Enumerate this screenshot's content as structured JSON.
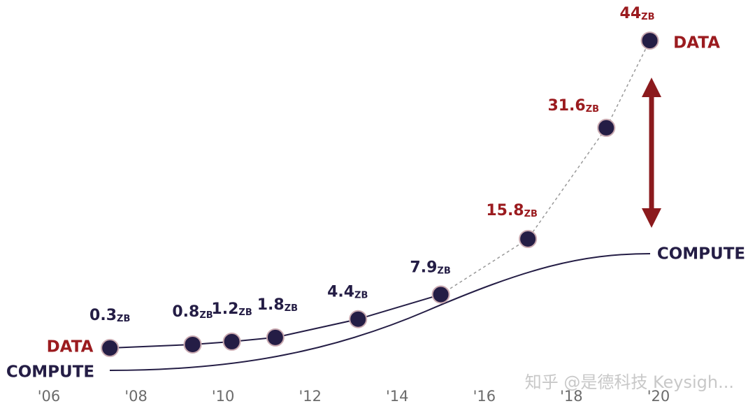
{
  "chart_data": {
    "type": "line",
    "unit": "ZB",
    "x": [
      2007.4,
      2009.3,
      2010.2,
      2011.2,
      2013.1,
      2015.0,
      2017.0,
      2018.8,
      2019.8
    ],
    "series": [
      {
        "name": "DATA",
        "color": "#9b1b1f",
        "point_color": "#241d45",
        "values": [
          0.3,
          0.8,
          1.2,
          1.8,
          4.4,
          7.9,
          15.8,
          31.6,
          44
        ],
        "label_colors": [
          "#241d45",
          "#241d45",
          "#241d45",
          "#241d45",
          "#241d45",
          "#241d45",
          "#9b1b1f",
          "#9b1b1f",
          "#9b1b1f"
        ]
      }
    ],
    "compute_name": "COMPUTE",
    "compute_color": "#241d45",
    "xlim": [
      2006,
      2020
    ],
    "xticks": [
      {
        "value": 2006,
        "label": "'06"
      },
      {
        "value": 2008,
        "label": "'08"
      },
      {
        "value": 2010,
        "label": "'10"
      },
      {
        "value": 2012,
        "label": "'12"
      },
      {
        "value": 2014,
        "label": "'14"
      },
      {
        "value": 2016,
        "label": "'16"
      },
      {
        "value": 2018,
        "label": "'18"
      },
      {
        "value": 2020,
        "label": "'20"
      }
    ],
    "ylim": [
      0,
      45
    ],
    "watermark": "知乎 @是德科技 Keysigh..."
  }
}
